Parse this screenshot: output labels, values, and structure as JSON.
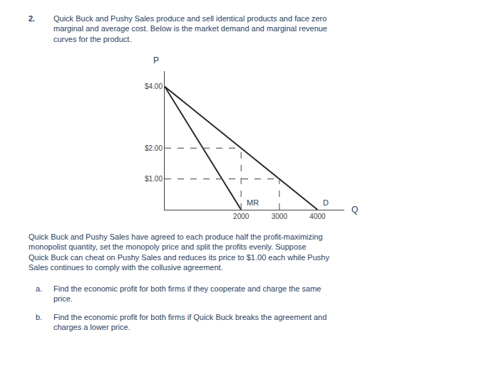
{
  "chart_data": {
    "type": "line",
    "xlabel": "Q",
    "ylabel": "P",
    "xlim": [
      0,
      4700
    ],
    "xticks": [
      2000,
      3000,
      4000
    ],
    "ylim": [
      0,
      4.5
    ],
    "yticks": [
      {
        "value": 1.0,
        "label": "$1.00"
      },
      {
        "value": 2.0,
        "label": "$2.00"
      },
      {
        "value": 4.0,
        "label": "$4.00"
      }
    ],
    "grid": false,
    "series": [
      {
        "name": "D",
        "x": [
          0,
          4000
        ],
        "values": [
          4.0,
          0.0
        ],
        "color": "#2a2a2a",
        "line_style": "solid"
      },
      {
        "name": "MR",
        "x": [
          0,
          2000
        ],
        "values": [
          4.0,
          0.0
        ],
        "color": "#2a2a2a",
        "line_style": "solid"
      },
      {
        "x": [
          0,
          2000
        ],
        "values": [
          2.0,
          2.0
        ],
        "color": "#666666",
        "line_style": "dashed"
      },
      {
        "x": [
          2000,
          2000
        ],
        "values": [
          0,
          2.0
        ],
        "color": "#666666",
        "line_style": "dashed"
      },
      {
        "x": [
          0,
          3000
        ],
        "values": [
          1.0,
          1.0
        ],
        "color": "#666666",
        "line_style": "dashed"
      },
      {
        "x": [
          3000,
          3000
        ],
        "values": [
          0,
          1.0
        ],
        "color": "#666666",
        "line_style": "dashed"
      }
    ],
    "annotations": [
      "2.",
      "Quick Buck and Pushy Sales produce and sell identical products and face zero\nmarginal and average cost. Below is the market demand and marginal revenue\ncurves for the product.",
      "Quick Buck and Pushy Sales have agreed to each produce half the profit-maximizing\nmonopolist quantity, set the monopoly price and split the profits evenly. Suppose\nQuick Buck can cheat on Pushy Sales and reduces its price to $1.00 each while Pushy\nSales continues to comply with the collusive agreement.",
      "a.",
      "Find the economic profit for both firms if they cooperate and charge the same\nprice.",
      "b.",
      "Find the economic profit for both firms if Quick Buck breaks the agreement and\ncharges a lower price."
    ]
  }
}
